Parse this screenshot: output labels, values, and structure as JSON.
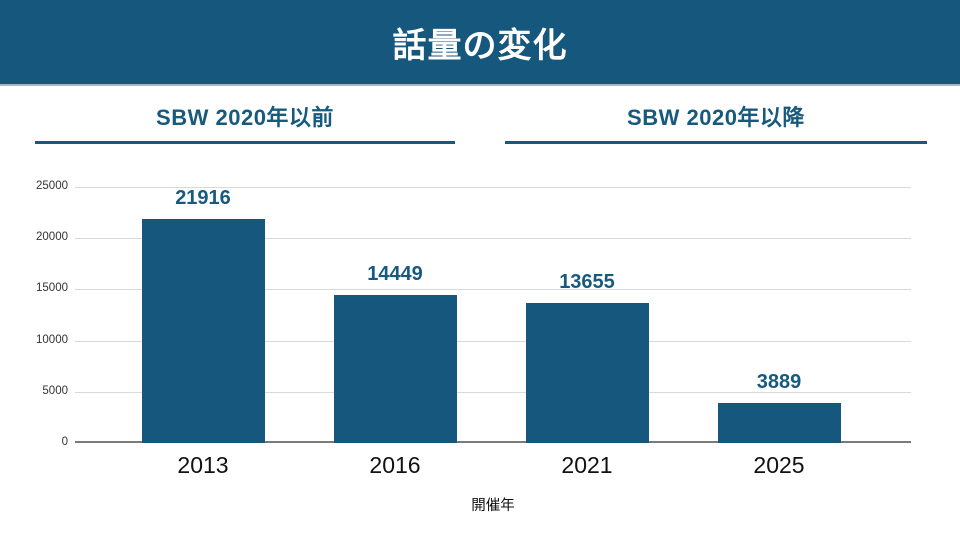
{
  "slide": {
    "title": "話量の変化"
  },
  "sections": [
    {
      "label": "SBW 2020年以前"
    },
    {
      "label": "SBW 2020年以降"
    }
  ],
  "chart_data": {
    "type": "bar",
    "categories": [
      "2013",
      "2016",
      "2021",
      "2025"
    ],
    "values": [
      21916,
      14449,
      13655,
      3889
    ],
    "data_labels": [
      "21916",
      "14449",
      "13655",
      "3889"
    ],
    "title": "話量の変化",
    "xlabel": "開催年",
    "ylabel": "",
    "ylim": [
      0,
      25000
    ],
    "yticks": [
      0,
      5000,
      10000,
      15000,
      20000,
      25000
    ],
    "grid": true,
    "legend": "none",
    "bar_color": "#16587D",
    "value_label_color": "#175A7E"
  },
  "colors": {
    "header_background": "#16587D",
    "header_text": "#ffffff",
    "section_text": "#175A7E",
    "gridline": "#d9d9d9",
    "axis_line": "#7a7a7a"
  }
}
